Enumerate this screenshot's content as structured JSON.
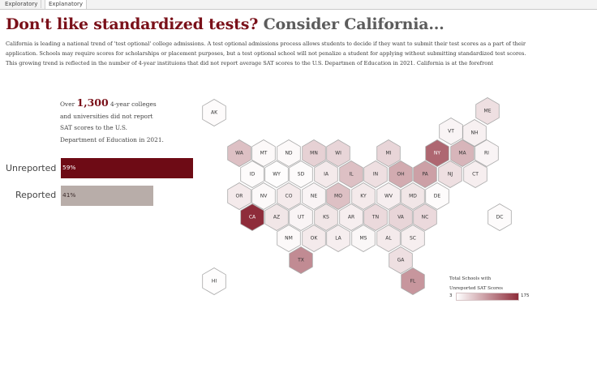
{
  "tabs": [
    {
      "label": "Exploratory",
      "active": false
    },
    {
      "label": "Explanatory",
      "active": true
    }
  ],
  "headline": {
    "part1": "Don't like standardized tests?",
    "part2": "Consider California..."
  },
  "intro": "California is leading a national trend of 'test optional' college admissions. A test optional admissions process allows students to decide if they want to submit their test scores as a part of their application. Schools may require scores for scholarships or placement purposes, but a test optional school will not penalize a student for applying without submitting standardized test scores. This growing trend is reflected in the number of 4-year instituions that did not report average SAT scores to the U.S. Departmen of Education in 2021. California is at the forefront",
  "stat": {
    "prefix": "Over",
    "number": "1,300",
    "suffix": "4-year colleges and universities did not report SAT scores to the U.S. Department of Education in 2021."
  },
  "bars": {
    "unreported": {
      "label": "Unreported",
      "value_text": "59%",
      "share": 0.59,
      "color": "#6e0b15"
    },
    "reported": {
      "label": "Reported",
      "value_text": "41%",
      "share": 0.41,
      "color": "#b8ada9"
    }
  },
  "legend": {
    "title_line1": "Total Schools with",
    "title_line2": "Unreported SAT Scores",
    "min": "3",
    "max": "175",
    "color_low": "#ffffff",
    "color_high": "#8e2c3a"
  },
  "states": [
    {
      "abbr": "AK",
      "intensity": 0.02
    },
    {
      "abbr": "ME",
      "intensity": 0.15
    },
    {
      "abbr": "VT",
      "intensity": 0.05
    },
    {
      "abbr": "NH",
      "intensity": 0.07
    },
    {
      "abbr": "WA",
      "intensity": 0.3
    },
    {
      "abbr": "MT",
      "intensity": 0.03
    },
    {
      "abbr": "ND",
      "intensity": 0.03
    },
    {
      "abbr": "MN",
      "intensity": 0.22
    },
    {
      "abbr": "WI",
      "intensity": 0.2
    },
    {
      "abbr": "MI",
      "intensity": 0.2
    },
    {
      "abbr": "NY",
      "intensity": 0.72
    },
    {
      "abbr": "MA",
      "intensity": 0.35
    },
    {
      "abbr": "RI",
      "intensity": 0.05
    },
    {
      "abbr": "ID",
      "intensity": 0.02
    },
    {
      "abbr": "WY",
      "intensity": 0.01
    },
    {
      "abbr": "SD",
      "intensity": 0.02
    },
    {
      "abbr": "IA",
      "intensity": 0.1
    },
    {
      "abbr": "IL",
      "intensity": 0.3
    },
    {
      "abbr": "IN",
      "intensity": 0.15
    },
    {
      "abbr": "OH",
      "intensity": 0.4
    },
    {
      "abbr": "PA",
      "intensity": 0.45
    },
    {
      "abbr": "NJ",
      "intensity": 0.15
    },
    {
      "abbr": "CT",
      "intensity": 0.08
    },
    {
      "abbr": "OR",
      "intensity": 0.1
    },
    {
      "abbr": "NV",
      "intensity": 0.03
    },
    {
      "abbr": "CO",
      "intensity": 0.1
    },
    {
      "abbr": "NE",
      "intensity": 0.05
    },
    {
      "abbr": "MO",
      "intensity": 0.3
    },
    {
      "abbr": "KY",
      "intensity": 0.1
    },
    {
      "abbr": "WV",
      "intensity": 0.08
    },
    {
      "abbr": "MD",
      "intensity": 0.12
    },
    {
      "abbr": "DE",
      "intensity": 0.02
    },
    {
      "abbr": "CA",
      "intensity": 1.0
    },
    {
      "abbr": "AZ",
      "intensity": 0.12
    },
    {
      "abbr": "UT",
      "intensity": 0.05
    },
    {
      "abbr": "KS",
      "intensity": 0.12
    },
    {
      "abbr": "AR",
      "intensity": 0.08
    },
    {
      "abbr": "TN",
      "intensity": 0.18
    },
    {
      "abbr": "VA",
      "intensity": 0.2
    },
    {
      "abbr": "NC",
      "intensity": 0.18
    },
    {
      "abbr": "DC",
      "intensity": 0.02
    },
    {
      "abbr": "NM",
      "intensity": 0.03
    },
    {
      "abbr": "OK",
      "intensity": 0.1
    },
    {
      "abbr": "LA",
      "intensity": 0.08
    },
    {
      "abbr": "MS",
      "intensity": 0.04
    },
    {
      "abbr": "AL",
      "intensity": 0.1
    },
    {
      "abbr": "SC",
      "intensity": 0.08
    },
    {
      "abbr": "TX",
      "intensity": 0.55
    },
    {
      "abbr": "GA",
      "intensity": 0.15
    },
    {
      "abbr": "HI",
      "intensity": 0.01
    },
    {
      "abbr": "FL",
      "intensity": 0.5
    }
  ]
}
